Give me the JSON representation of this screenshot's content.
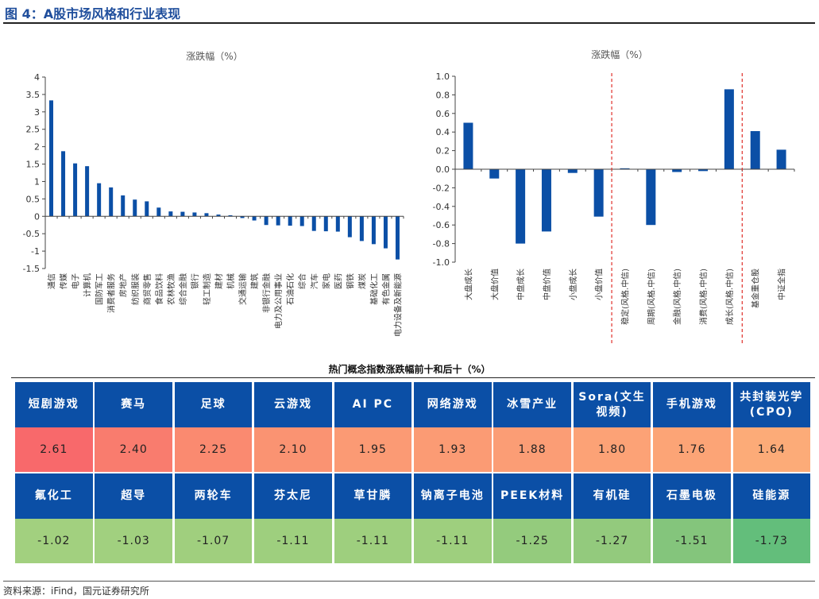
{
  "figure": {
    "title": "图 4：A股市场风格和行业表现",
    "source": "资料来源：iFind，国元证券研究所"
  },
  "chart_data": [
    {
      "type": "bar",
      "title": "涨跌幅（%）",
      "ylim": [
        -1.5,
        4
      ],
      "yticks": [
        4,
        3.5,
        3,
        2.5,
        2,
        1.5,
        1,
        0.5,
        0,
        -0.5,
        -1,
        -1.5
      ],
      "ytick_labels": [
        "4",
        "3.5",
        "3",
        "2.5",
        "2",
        "1.5",
        "1",
        "0.5",
        "0",
        "-0.5",
        "-1",
        "-1.5"
      ],
      "bar_color": "#0b4fa6",
      "categories": [
        "通信",
        "传媒",
        "电子",
        "计算机",
        "国防军工",
        "消费者服务",
        "房地产",
        "纺织服装",
        "商贸零售",
        "食品饮料",
        "农林牧渔",
        "综合金融",
        "银行",
        "轻工制造",
        "建材",
        "机械",
        "交通运输",
        "建筑",
        "非银行金融",
        "电力及公用事业",
        "石油石化",
        "综合",
        "汽车",
        "家电",
        "医药",
        "钢铁",
        "煤炭",
        "基础化工",
        "有色金属",
        "电力设备及新能源"
      ],
      "values": [
        3.33,
        1.87,
        1.52,
        1.44,
        0.95,
        0.83,
        0.6,
        0.48,
        0.43,
        0.25,
        0.14,
        0.13,
        0.11,
        0.09,
        0.05,
        0.03,
        -0.05,
        -0.12,
        -0.25,
        -0.26,
        -0.27,
        -0.28,
        -0.42,
        -0.43,
        -0.44,
        -0.6,
        -0.71,
        -0.8,
        -0.92,
        -1.24
      ]
    },
    {
      "type": "bar",
      "title": "涨跌幅（%）",
      "ylim": [
        -1.0,
        1.0
      ],
      "yticks": [
        1.0,
        0.8,
        0.6,
        0.4,
        0.2,
        0.0,
        -0.2,
        -0.4,
        -0.6,
        -0.8,
        -1.0
      ],
      "ytick_labels": [
        "1.0",
        "0.8",
        "0.6",
        "0.4",
        "0.2",
        "0.0",
        "-0.2",
        "-0.4",
        "-0.6",
        "-0.8",
        "-1.0"
      ],
      "bar_color": "#0b4fa6",
      "separator_color": "#e0302a",
      "separators_after_index": [
        5,
        10
      ],
      "categories": [
        "大盘成长",
        "大盘价值",
        "中盘成长",
        "中盘价值",
        "小盘成长",
        "小盘价值",
        "稳定(风格.中信)",
        "周期(风格.中信)",
        "金融(风格.中信)",
        "消费(风格.中信)",
        "成长(风格.中信)",
        "基金重仓股",
        "中证全指"
      ],
      "values": [
        0.5,
        -0.1,
        -0.8,
        -0.67,
        -0.04,
        -0.51,
        0.01,
        -0.6,
        -0.03,
        -0.02,
        0.86,
        0.41,
        0.21
      ]
    }
  ],
  "table": {
    "title": "热门概念指数涨跌幅前十和后十（%）",
    "header_color": "#0b4fa6",
    "top": {
      "names": [
        "短剧游戏",
        "赛马",
        "足球",
        "云游戏",
        "AI PC",
        "网络游戏",
        "冰雪产业",
        "Sora(文生视频)",
        "手机游戏",
        "共封装光学(CPO)"
      ],
      "values": [
        "2.61",
        "2.40",
        "2.25",
        "2.10",
        "1.95",
        "1.93",
        "1.88",
        "1.80",
        "1.76",
        "1.64"
      ],
      "colors": [
        "#f8696b",
        "#f97c6e",
        "#fa8a70",
        "#fa9372",
        "#fb9a74",
        "#fb9b74",
        "#fb9d75",
        "#fca276",
        "#fca476",
        "#fcab78"
      ]
    },
    "bottom": {
      "names": [
        "氟化工",
        "超导",
        "两轮车",
        "芬太尼",
        "草甘膦",
        "钠离子电池",
        "PEEK材料",
        "有机硅",
        "石墨电极",
        "硅能源"
      ],
      "values": [
        "-1.02",
        "-1.03",
        "-1.07",
        "-1.11",
        "-1.11",
        "-1.11",
        "-1.25",
        "-1.27",
        "-1.51",
        "-1.73"
      ],
      "colors": [
        "#a2d07f",
        "#a1d07f",
        "#a0cf7e",
        "#9ecf7e",
        "#9ecf7e",
        "#9ecf7e",
        "#94cb7d",
        "#93ca7d",
        "#84c57c",
        "#63be7b"
      ]
    }
  }
}
